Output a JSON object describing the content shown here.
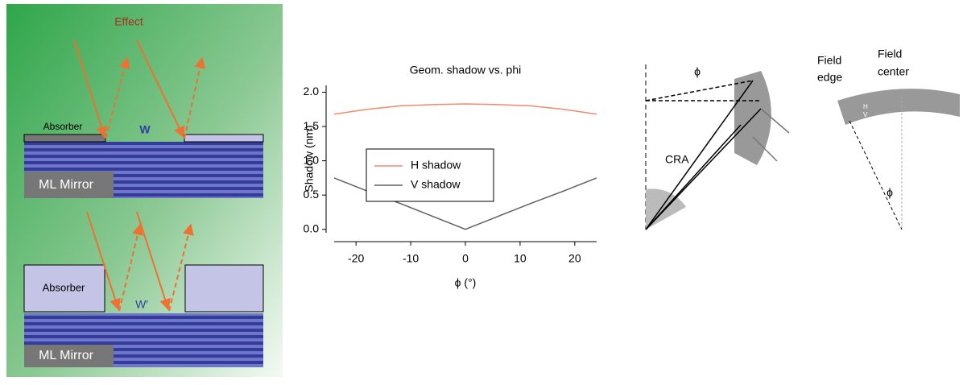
{
  "left_panel": {
    "effect": "Effect",
    "top_absorber": "Absorber",
    "top_width": "W",
    "top_mirror": "ML Mirror",
    "bottom_absorber": "Absorber",
    "bottom_width": "W′",
    "bottom_mirror": "ML Mirror"
  },
  "chart_data": {
    "type": "line",
    "title": "Geom. shadow vs. phi",
    "x_label": "ϕ (°)",
    "y_label": "Shadow (nm)",
    "x": [
      -24,
      -18,
      -12,
      -6,
      0,
      6,
      12,
      18,
      24
    ],
    "series": [
      {
        "name": "H shadow",
        "color": "#f08a70",
        "values": [
          1.68,
          1.75,
          1.8,
          1.82,
          1.83,
          1.82,
          1.8,
          1.75,
          1.68
        ]
      },
      {
        "name": "V shadow",
        "color": "#606060",
        "values": [
          0.75,
          0.56,
          0.38,
          0.19,
          0,
          0.19,
          0.38,
          0.56,
          0.75
        ]
      }
    ],
    "xlim": [
      -24,
      24
    ],
    "xticks": [
      -20,
      -10,
      0,
      10,
      20
    ],
    "ylim": [
      -0.05,
      2.1
    ],
    "yticks": [
      {
        "value": 0,
        "label": "0.0"
      },
      0.5,
      {
        "value": 1,
        "label": "1.0"
      },
      1.5,
      {
        "value": 2,
        "label": "2.0"
      }
    ]
  },
  "right_panel": {
    "edge_phi": "ϕ",
    "cra": "CRA",
    "field_edge": [
      "Field",
      "edge"
    ],
    "field_center": [
      "Field",
      "center"
    ],
    "center_phi": "ϕ",
    "h": "H",
    "v": "V"
  }
}
